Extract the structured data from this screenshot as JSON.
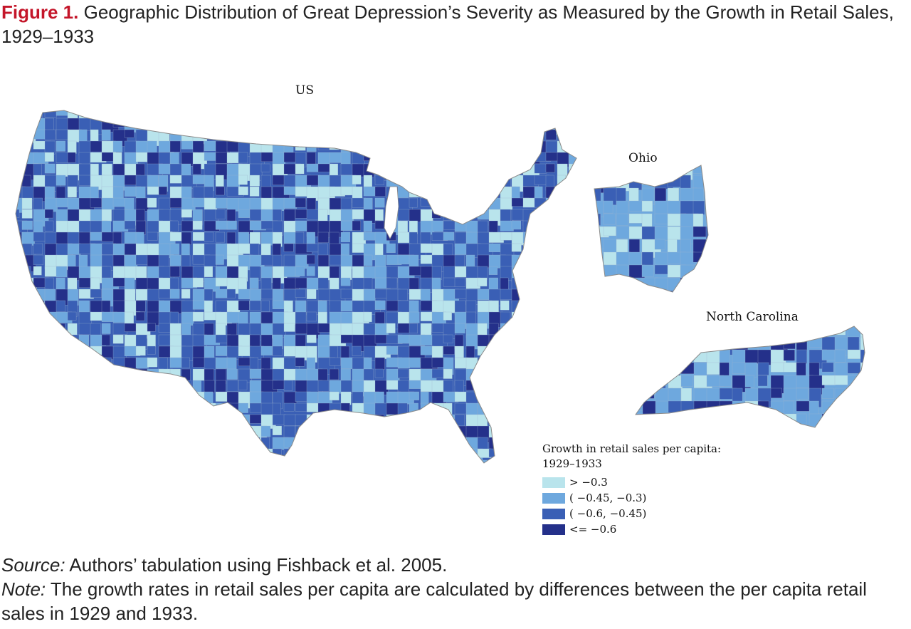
{
  "figure": {
    "label": "Figure 1.",
    "title": "Geographic Distribution of Great Depression’s Severity as Measured by the Growth in Retail Sales, 1929–1933"
  },
  "panels": {
    "us": "US",
    "ohio": "Ohio",
    "north_carolina": "North Carolina"
  },
  "legend": {
    "title_line1": "Growth in retail sales per capita:",
    "title_line2": "1929–1933",
    "items": [
      {
        "label": "> −0.3",
        "color": "#b9e4ec"
      },
      {
        "label": "( −0.45, −0.3)",
        "color": "#6ea8de"
      },
      {
        "label": "( −0.6, −0.45)",
        "color": "#3a5fb5"
      },
      {
        "label": "<= −0.6",
        "color": "#24308a"
      }
    ]
  },
  "source": {
    "lead": "Source:",
    "text": " Authors’ tabulation using Fishback et al. 2005."
  },
  "note": {
    "lead": "Note:",
    "text": " The growth rates in retail sales per capita are calculated by differences between the per capita retail sales in 1929 and 1933."
  }
}
